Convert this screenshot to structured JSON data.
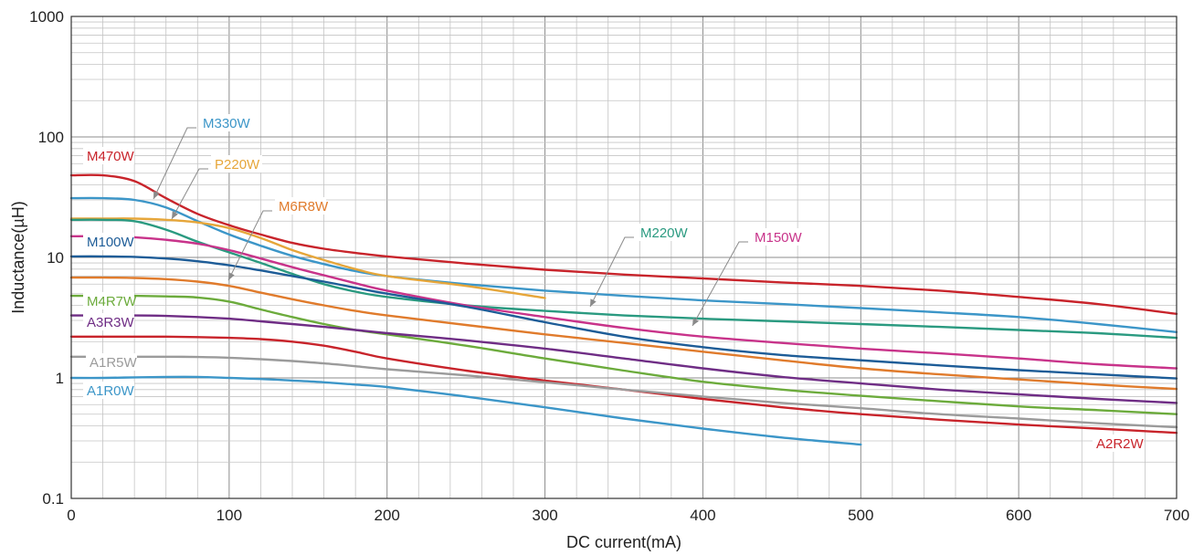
{
  "chart_data": {
    "type": "line",
    "title": "",
    "xlabel": "DC current(mA)",
    "ylabel": "Inductance(µH)",
    "xlim": [
      0,
      700
    ],
    "ylim": [
      0.1,
      1000
    ],
    "yscale": "log",
    "grid": true,
    "x_ticks": [
      {
        "value": 0,
        "label": "0"
      },
      {
        "value": 100,
        "label": "100"
      },
      {
        "value": 200,
        "label": "200"
      },
      {
        "value": 300,
        "label": "300"
      },
      {
        "value": 400,
        "label": "400"
      },
      {
        "value": 500,
        "label": "500"
      },
      {
        "value": 600,
        "label": "600"
      },
      {
        "value": 700,
        "label": "700"
      }
    ],
    "y_ticks": [
      {
        "value": 0.1,
        "label": "0.1"
      },
      {
        "value": 1,
        "label": "1"
      },
      {
        "value": 10,
        "label": "10"
      },
      {
        "value": 100,
        "label": "100"
      },
      {
        "value": 1000,
        "label": "1000"
      }
    ],
    "series": [
      {
        "name": "M470W",
        "color": "#c8242b",
        "x": [
          0,
          20,
          40,
          60,
          80,
          100,
          120,
          140,
          160,
          180,
          200,
          250,
          300,
          350,
          400,
          450,
          500,
          550,
          600,
          650,
          700
        ],
        "y": [
          48,
          48,
          43,
          31,
          23,
          18.5,
          15.5,
          13.2,
          11.8,
          10.9,
          10.2,
          8.9,
          7.9,
          7.2,
          6.7,
          6.2,
          5.8,
          5.3,
          4.7,
          4.1,
          3.4
        ]
      },
      {
        "name": "M330W",
        "color": "#3c96c8",
        "x": [
          0,
          20,
          40,
          60,
          80,
          100,
          120,
          140,
          160,
          180,
          200,
          250,
          300,
          350,
          400,
          450,
          500,
          550,
          600,
          650,
          700
        ],
        "y": [
          31,
          31,
          30,
          26,
          20,
          15.5,
          12.5,
          10.3,
          8.8,
          7.7,
          7,
          6,
          5.3,
          4.8,
          4.4,
          4.1,
          3.8,
          3.5,
          3.2,
          2.8,
          2.4
        ]
      },
      {
        "name": "P220W",
        "color": "#e6a63a",
        "x": [
          0,
          20,
          40,
          60,
          80,
          100,
          120,
          140,
          160,
          180,
          200,
          250,
          300
        ],
        "y": [
          21,
          21,
          21,
          20.5,
          19.5,
          17.5,
          14.5,
          11.5,
          9.5,
          8,
          7,
          5.8,
          4.6
        ]
      },
      {
        "name": "M220W",
        "color": "#2a9a80",
        "x": [
          0,
          20,
          40,
          60,
          80,
          100,
          120,
          140,
          160,
          180,
          200,
          250,
          300,
          350,
          400,
          450,
          500,
          550,
          600,
          650,
          700
        ],
        "y": [
          20.5,
          20.5,
          20,
          17,
          13.5,
          11,
          9,
          7.3,
          6,
          5.2,
          4.7,
          4,
          3.6,
          3.3,
          3.1,
          2.95,
          2.8,
          2.65,
          2.5,
          2.35,
          2.15
        ]
      },
      {
        "name": "M150W",
        "color": "#c8338a",
        "x": [
          0,
          20,
          40,
          60,
          80,
          100,
          120,
          140,
          160,
          180,
          200,
          250,
          300,
          350,
          400,
          450,
          500,
          550,
          600,
          650,
          700
        ],
        "y": [
          15,
          15,
          14.7,
          14,
          13,
          11.5,
          9.8,
          8.3,
          7.1,
          6.1,
          5.3,
          4,
          3.2,
          2.6,
          2.2,
          1.95,
          1.75,
          1.6,
          1.45,
          1.3,
          1.2
        ]
      },
      {
        "name": "M100W",
        "color": "#1d5c97",
        "x": [
          0,
          20,
          40,
          60,
          80,
          100,
          120,
          140,
          160,
          180,
          200,
          250,
          300,
          350,
          400,
          450,
          500,
          550,
          600,
          650,
          700
        ],
        "y": [
          10.2,
          10.2,
          10.1,
          9.8,
          9.3,
          8.6,
          7.8,
          7,
          6.3,
          5.6,
          5,
          3.9,
          2.9,
          2.2,
          1.8,
          1.55,
          1.4,
          1.27,
          1.16,
          1.07,
          0.99
        ]
      },
      {
        "name": "M6R8W",
        "color": "#e07b2c",
        "x": [
          0,
          20,
          40,
          60,
          80,
          100,
          120,
          140,
          160,
          180,
          200,
          250,
          300,
          350,
          400,
          450,
          500,
          550,
          600,
          650,
          700
        ],
        "y": [
          6.8,
          6.8,
          6.75,
          6.6,
          6.3,
          5.8,
          5.1,
          4.5,
          4,
          3.6,
          3.3,
          2.75,
          2.3,
          1.95,
          1.65,
          1.4,
          1.2,
          1.07,
          0.97,
          0.88,
          0.81
        ]
      },
      {
        "name": "M4R7W",
        "color": "#6cab3c",
        "x": [
          0,
          20,
          40,
          60,
          80,
          100,
          120,
          140,
          160,
          180,
          200,
          250,
          300,
          350,
          400,
          450,
          500,
          550,
          600,
          650,
          700
        ],
        "y": [
          4.8,
          4.8,
          4.8,
          4.75,
          4.65,
          4.3,
          3.7,
          3.2,
          2.8,
          2.5,
          2.3,
          1.85,
          1.45,
          1.15,
          0.93,
          0.8,
          0.71,
          0.64,
          0.58,
          0.54,
          0.5
        ]
      },
      {
        "name": "A3R3W",
        "color": "#6f2d85",
        "x": [
          0,
          20,
          40,
          60,
          80,
          100,
          120,
          140,
          160,
          180,
          200,
          250,
          300,
          350,
          400,
          450,
          500,
          550,
          600,
          650,
          700
        ],
        "y": [
          3.3,
          3.3,
          3.3,
          3.27,
          3.2,
          3.1,
          2.95,
          2.8,
          2.65,
          2.5,
          2.35,
          2.05,
          1.75,
          1.45,
          1.2,
          1.02,
          0.9,
          0.8,
          0.73,
          0.67,
          0.62
        ]
      },
      {
        "name": "A2R2W",
        "color": "#c8242b",
        "x": [
          0,
          20,
          40,
          60,
          80,
          100,
          120,
          140,
          160,
          180,
          200,
          250,
          300,
          350,
          400,
          450,
          500,
          550,
          600,
          650,
          700
        ],
        "y": [
          2.2,
          2.2,
          2.2,
          2.2,
          2.18,
          2.15,
          2.1,
          2,
          1.85,
          1.65,
          1.45,
          1.15,
          0.95,
          0.8,
          0.67,
          0.57,
          0.5,
          0.45,
          0.41,
          0.38,
          0.35
        ]
      },
      {
        "name": "A1R5W",
        "color": "#9b9b9b",
        "x": [
          0,
          20,
          40,
          60,
          80,
          100,
          120,
          140,
          160,
          180,
          200,
          250,
          300,
          350,
          400,
          450,
          500,
          550,
          600,
          650,
          700
        ],
        "y": [
          1.5,
          1.5,
          1.5,
          1.5,
          1.49,
          1.47,
          1.43,
          1.38,
          1.32,
          1.25,
          1.18,
          1.05,
          0.92,
          0.8,
          0.7,
          0.62,
          0.56,
          0.5,
          0.46,
          0.42,
          0.39
        ]
      },
      {
        "name": "A1R0W",
        "color": "#3c96c8",
        "x": [
          0,
          20,
          40,
          60,
          80,
          100,
          120,
          140,
          160,
          180,
          200,
          250,
          300,
          350,
          400,
          450,
          500
        ],
        "y": [
          1,
          1,
          1.01,
          1.02,
          1.02,
          1,
          0.98,
          0.95,
          0.92,
          0.88,
          0.84,
          0.7,
          0.57,
          0.46,
          0.38,
          0.32,
          0.28
        ]
      }
    ]
  }
}
